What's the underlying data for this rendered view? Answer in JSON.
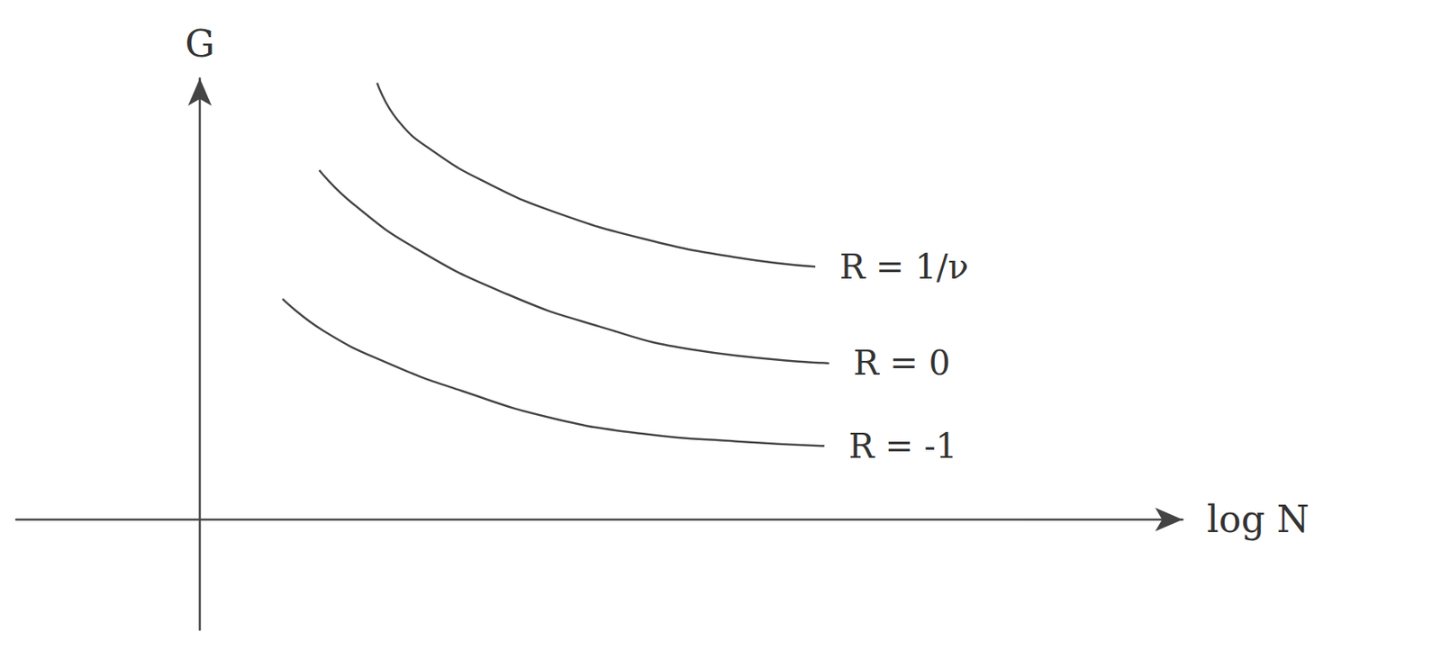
{
  "chart_data": {
    "type": "line",
    "x_label": "log N",
    "y_label": "G",
    "xlim": [
      -2,
      10.7
    ],
    "ylim": [
      -1.2,
      4.8
    ],
    "grid": false,
    "tick_labels": false,
    "series": [
      {
        "name": "R = 1/ν",
        "color": "#444444",
        "x": [
          1.93,
          2.15,
          2.55,
          3.15,
          3.85,
          4.85,
          5.85,
          6.7
        ],
        "values": [
          4.75,
          4.35,
          4.0,
          3.65,
          3.35,
          3.05,
          2.85,
          2.75
        ]
      },
      {
        "name": "R = 0",
        "color": "#444444",
        "x": [
          1.3,
          1.65,
          2.35,
          3.35,
          4.35,
          5.35,
          6.85
        ],
        "values": [
          3.8,
          3.45,
          2.95,
          2.45,
          2.1,
          1.85,
          1.7
        ]
      },
      {
        "name": "R = -1",
        "color": "#444444",
        "x": [
          0.9,
          1.35,
          2.05,
          2.85,
          3.85,
          4.85,
          5.85,
          6.8
        ],
        "values": [
          2.4,
          2.05,
          1.7,
          1.4,
          1.1,
          0.93,
          0.85,
          0.8
        ]
      }
    ]
  }
}
